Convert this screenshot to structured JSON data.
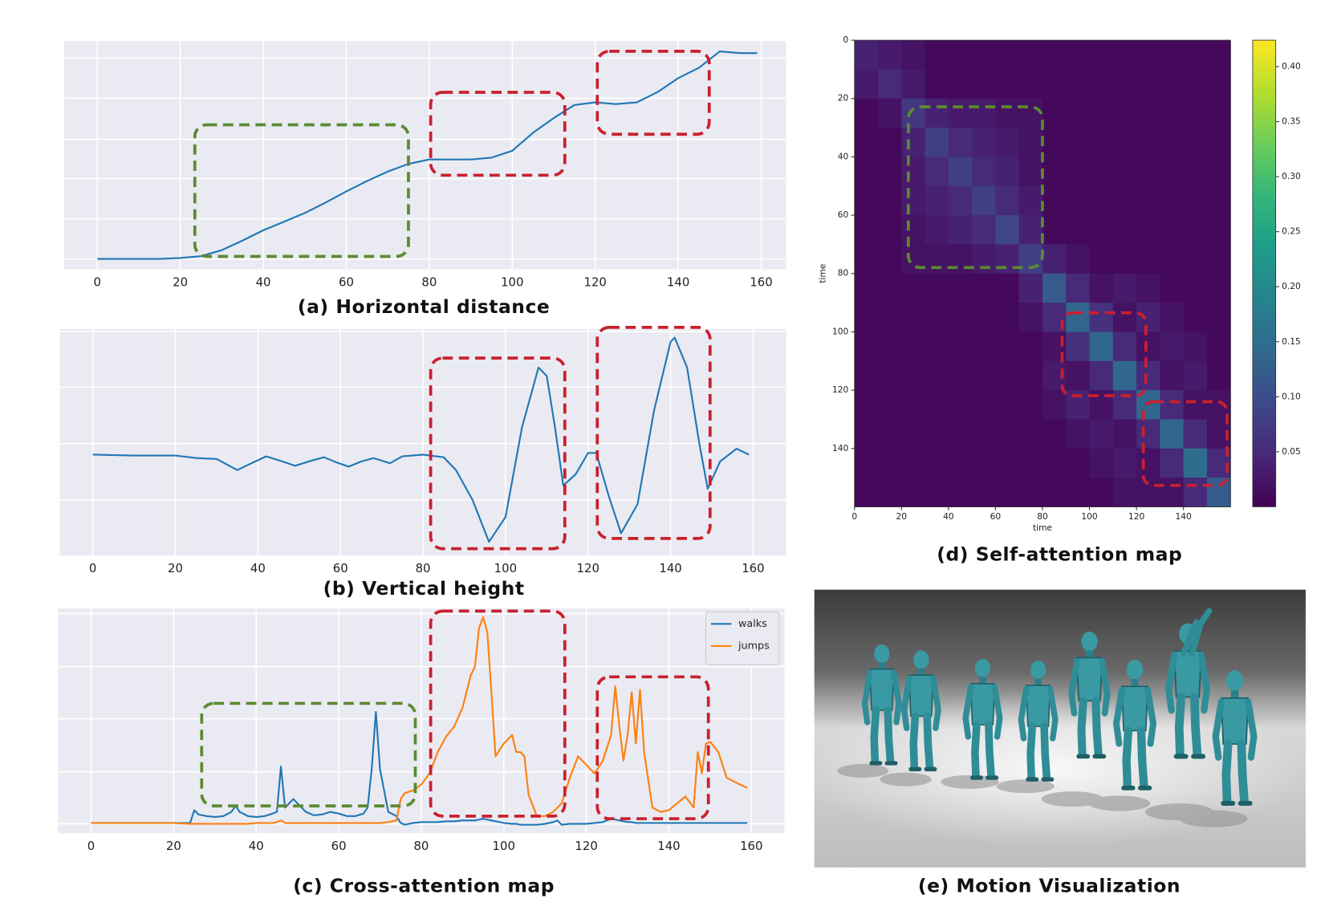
{
  "chart_data": [
    {
      "type": "line",
      "title": "(a) Horizontal distance",
      "grid": true,
      "xlim": [
        -8,
        166
      ],
      "xticks": [
        0,
        20,
        40,
        60,
        80,
        100,
        120,
        140,
        160
      ],
      "ylim": [
        -0.05,
        1.05
      ],
      "x": [
        0,
        5,
        10,
        15,
        20,
        25,
        30,
        35,
        40,
        45,
        50,
        55,
        60,
        65,
        70,
        75,
        80,
        85,
        90,
        95,
        100,
        105,
        110,
        115,
        120,
        125,
        130,
        135,
        140,
        145,
        150,
        155,
        159
      ],
      "values": [
        0,
        0,
        0,
        0,
        0.004,
        0.013,
        0.042,
        0.088,
        0.138,
        0.179,
        0.221,
        0.271,
        0.325,
        0.375,
        0.421,
        0.458,
        0.479,
        0.479,
        0.479,
        0.488,
        0.521,
        0.608,
        0.679,
        0.742,
        0.754,
        0.746,
        0.754,
        0.804,
        0.871,
        0.921,
        1.0,
        0.992,
        0.992
      ],
      "color": "#1f77b4"
    },
    {
      "type": "line",
      "title": "(b) Vertical height",
      "grid": true,
      "xlim": [
        -8,
        168
      ],
      "xticks": [
        0,
        20,
        40,
        60,
        80,
        100,
        120,
        140,
        160
      ],
      "ylim": [
        -1.18,
        1.47
      ],
      "x": [
        0,
        10,
        20,
        25,
        30,
        35,
        38,
        42,
        46,
        49,
        53,
        56,
        59,
        62,
        65,
        68,
        72,
        75,
        80,
        85,
        88,
        92,
        96,
        100,
        104,
        108,
        110,
        112,
        114,
        117,
        120,
        122,
        125,
        128,
        132,
        136,
        140,
        141,
        144,
        147,
        149,
        152,
        156,
        159
      ],
      "values": [
        0,
        -0.01,
        -0.01,
        -0.04,
        -0.05,
        -0.18,
        -0.11,
        -0.02,
        -0.08,
        -0.13,
        -0.07,
        -0.03,
        -0.09,
        -0.14,
        -0.08,
        -0.04,
        -0.1,
        -0.02,
        0,
        -0.03,
        -0.18,
        -0.53,
        -1.02,
        -0.73,
        0.32,
        1.02,
        0.92,
        0.32,
        -0.36,
        -0.23,
        0.02,
        0.02,
        -0.48,
        -0.92,
        -0.58,
        0.52,
        1.32,
        1.37,
        1.02,
        0.12,
        -0.4,
        -0.08,
        0.07,
        0
      ],
      "color": "#1f77b4"
    },
    {
      "type": "line",
      "title": "(c) Cross-attention map",
      "grid": true,
      "legend": "upper right",
      "xlim": [
        -8,
        168
      ],
      "xticks": [
        0,
        20,
        40,
        60,
        80,
        100,
        120,
        140,
        160
      ],
      "ylim": [
        -0.12,
        2.51
      ],
      "x": [
        0,
        10,
        20,
        24,
        25,
        26,
        28,
        30,
        32,
        34,
        35,
        36,
        38,
        40,
        42,
        44,
        45,
        46,
        47,
        48,
        49,
        50,
        52,
        54,
        56,
        58,
        60,
        62,
        64,
        66,
        67,
        68,
        69,
        70,
        72,
        74,
        75,
        76,
        78,
        80,
        82,
        84,
        86,
        88,
        90,
        92,
        93,
        94,
        95,
        96,
        97,
        98,
        100,
        102,
        103,
        104,
        105,
        106,
        108,
        110,
        112,
        113,
        114,
        116,
        118,
        120,
        122,
        124,
        126,
        127,
        128,
        129,
        130,
        131,
        132,
        133,
        134,
        136,
        138,
        140,
        142,
        144,
        146,
        147,
        148,
        149,
        150,
        152,
        154,
        156,
        159
      ],
      "series": [
        {
          "name": "walks",
          "color": "#1f77b4",
          "values": [
            0,
            0,
            0,
            0,
            0.15,
            0.1,
            0.08,
            0.07,
            0.08,
            0.13,
            0.2,
            0.13,
            0.08,
            0.07,
            0.08,
            0.11,
            0.13,
            0.66,
            0.18,
            0.23,
            0.28,
            0.23,
            0.13,
            0.09,
            0.1,
            0.13,
            0.11,
            0.08,
            0.08,
            0.11,
            0.18,
            0.63,
            1.3,
            0.63,
            0.13,
            0.08,
            0,
            -0.02,
            0,
            0.01,
            0.01,
            0.01,
            0.02,
            0.02,
            0.03,
            0.03,
            0.03,
            0.04,
            0.05,
            0.04,
            0.03,
            0.02,
            0,
            -0.01,
            -0.01,
            -0.02,
            -0.02,
            -0.02,
            -0.02,
            -0.01,
            0.01,
            0.03,
            -0.02,
            -0.01,
            -0.01,
            -0.01,
            0,
            0.01,
            0.05,
            0.04,
            0.03,
            0.02,
            0.01,
            0.01,
            0,
            0,
            0,
            0,
            0,
            0,
            0,
            0,
            0,
            0,
            0,
            0,
            0,
            0,
            0,
            0,
            0
          ]
        },
        {
          "name": "jumps",
          "color": "#ff7f0e",
          "values": [
            0,
            0,
            0,
            -0.01,
            -0.01,
            -0.01,
            -0.01,
            -0.01,
            -0.01,
            -0.01,
            -0.01,
            -0.01,
            -0.01,
            0,
            0,
            0,
            0.01,
            0.03,
            0,
            0,
            0,
            0,
            0,
            0,
            0,
            0,
            0,
            0,
            0,
            0,
            0,
            0,
            0,
            0,
            0.01,
            0.03,
            0.28,
            0.35,
            0.38,
            0.45,
            0.58,
            0.83,
            1.01,
            1.13,
            1.35,
            1.73,
            1.83,
            2.28,
            2.41,
            2.23,
            1.53,
            0.78,
            0.93,
            1.03,
            0.83,
            0.83,
            0.78,
            0.33,
            0.08,
            0.08,
            0.13,
            0.18,
            0.23,
            0.53,
            0.78,
            0.68,
            0.58,
            0.73,
            1.03,
            1.6,
            1.13,
            0.73,
            1.03,
            1.53,
            0.93,
            1.56,
            0.83,
            0.18,
            0.13,
            0.15,
            0.23,
            0.31,
            0.18,
            0.83,
            0.58,
            0.93,
            0.95,
            0.83,
            0.53,
            0.48,
            0.41
          ]
        }
      ]
    },
    {
      "type": "heatmap",
      "title": "(d) Self-attention map",
      "xlabel": "time",
      "ylabel": "time",
      "colormap": "viridis",
      "xlim": [
        0,
        160
      ],
      "ylim": [
        0,
        160
      ],
      "invert_y": true,
      "xticks": [
        0,
        20,
        40,
        60,
        80,
        100,
        120,
        140
      ],
      "yticks": [
        0,
        20,
        40,
        60,
        80,
        100,
        120,
        140
      ],
      "clim": [
        0,
        0.424
      ],
      "cticks": [
        0.05,
        {
          "value": 0.1,
          "label": "0.10"
        },
        0.15,
        {
          "value": 0.2,
          "label": "0.20"
        },
        0.25,
        {
          "value": 0.3,
          "label": "0.30"
        },
        0.35,
        {
          "value": 0.4,
          "label": "0.40"
        }
      ],
      "matrix": [
        [
          0.04,
          0.03,
          0.02,
          0.01,
          0.01,
          0.01,
          0.01,
          0.01,
          0.01,
          0.01,
          0.01,
          0.01,
          0.01,
          0.01,
          0.01,
          0.01
        ],
        [
          0.03,
          0.05,
          0.03,
          0.01,
          0.01,
          0.01,
          0.01,
          0.01,
          0.01,
          0.01,
          0.01,
          0.01,
          0.01,
          0.01,
          0.01,
          0.01
        ],
        [
          0.01,
          0.02,
          0.07,
          0.04,
          0.03,
          0.03,
          0.02,
          0.02,
          0.01,
          0.01,
          0.01,
          0.01,
          0.01,
          0.01,
          0.01,
          0.01
        ],
        [
          0.01,
          0.01,
          0.04,
          0.08,
          0.05,
          0.04,
          0.03,
          0.02,
          0.01,
          0.01,
          0.01,
          0.01,
          0.01,
          0.01,
          0.01,
          0.01
        ],
        [
          0.01,
          0.01,
          0.03,
          0.05,
          0.08,
          0.05,
          0.04,
          0.02,
          0.01,
          0.01,
          0.01,
          0.01,
          0.01,
          0.01,
          0.01,
          0.01
        ],
        [
          0.01,
          0.01,
          0.03,
          0.04,
          0.05,
          0.08,
          0.05,
          0.03,
          0.01,
          0.01,
          0.01,
          0.01,
          0.01,
          0.01,
          0.01,
          0.01
        ],
        [
          0.01,
          0.01,
          0.02,
          0.03,
          0.04,
          0.05,
          0.09,
          0.04,
          0.01,
          0.01,
          0.01,
          0.01,
          0.01,
          0.01,
          0.01,
          0.01
        ],
        [
          0.01,
          0.01,
          0.02,
          0.02,
          0.02,
          0.03,
          0.04,
          0.08,
          0.04,
          0.02,
          0.01,
          0.01,
          0.01,
          0.01,
          0.01,
          0.01
        ],
        [
          0.01,
          0.01,
          0.01,
          0.01,
          0.01,
          0.01,
          0.01,
          0.04,
          0.12,
          0.05,
          0.02,
          0.03,
          0.02,
          0.01,
          0.01,
          0.01
        ],
        [
          0.01,
          0.01,
          0.01,
          0.01,
          0.01,
          0.01,
          0.01,
          0.02,
          0.05,
          0.14,
          0.06,
          0.02,
          0.04,
          0.02,
          0.01,
          0.01
        ],
        [
          0.01,
          0.01,
          0.01,
          0.01,
          0.01,
          0.01,
          0.01,
          0.01,
          0.02,
          0.06,
          0.14,
          0.05,
          0.02,
          0.03,
          0.02,
          0.01
        ],
        [
          0.01,
          0.01,
          0.01,
          0.01,
          0.01,
          0.01,
          0.01,
          0.01,
          0.03,
          0.02,
          0.05,
          0.14,
          0.05,
          0.02,
          0.03,
          0.01
        ],
        [
          0.01,
          0.01,
          0.01,
          0.01,
          0.01,
          0.01,
          0.01,
          0.01,
          0.02,
          0.04,
          0.02,
          0.05,
          0.14,
          0.05,
          0.02,
          0.02
        ],
        [
          0.01,
          0.01,
          0.01,
          0.01,
          0.01,
          0.01,
          0.01,
          0.01,
          0.01,
          0.02,
          0.03,
          0.02,
          0.05,
          0.14,
          0.05,
          0.02
        ],
        [
          0.01,
          0.01,
          0.01,
          0.01,
          0.01,
          0.01,
          0.01,
          0.01,
          0.01,
          0.01,
          0.02,
          0.03,
          0.02,
          0.05,
          0.15,
          0.05
        ],
        [
          0.01,
          0.01,
          0.01,
          0.01,
          0.01,
          0.01,
          0.01,
          0.01,
          0.01,
          0.01,
          0.01,
          0.02,
          0.02,
          0.02,
          0.05,
          0.12
        ]
      ]
    }
  ],
  "image": {
    "title": "(e) Motion Visualization"
  }
}
